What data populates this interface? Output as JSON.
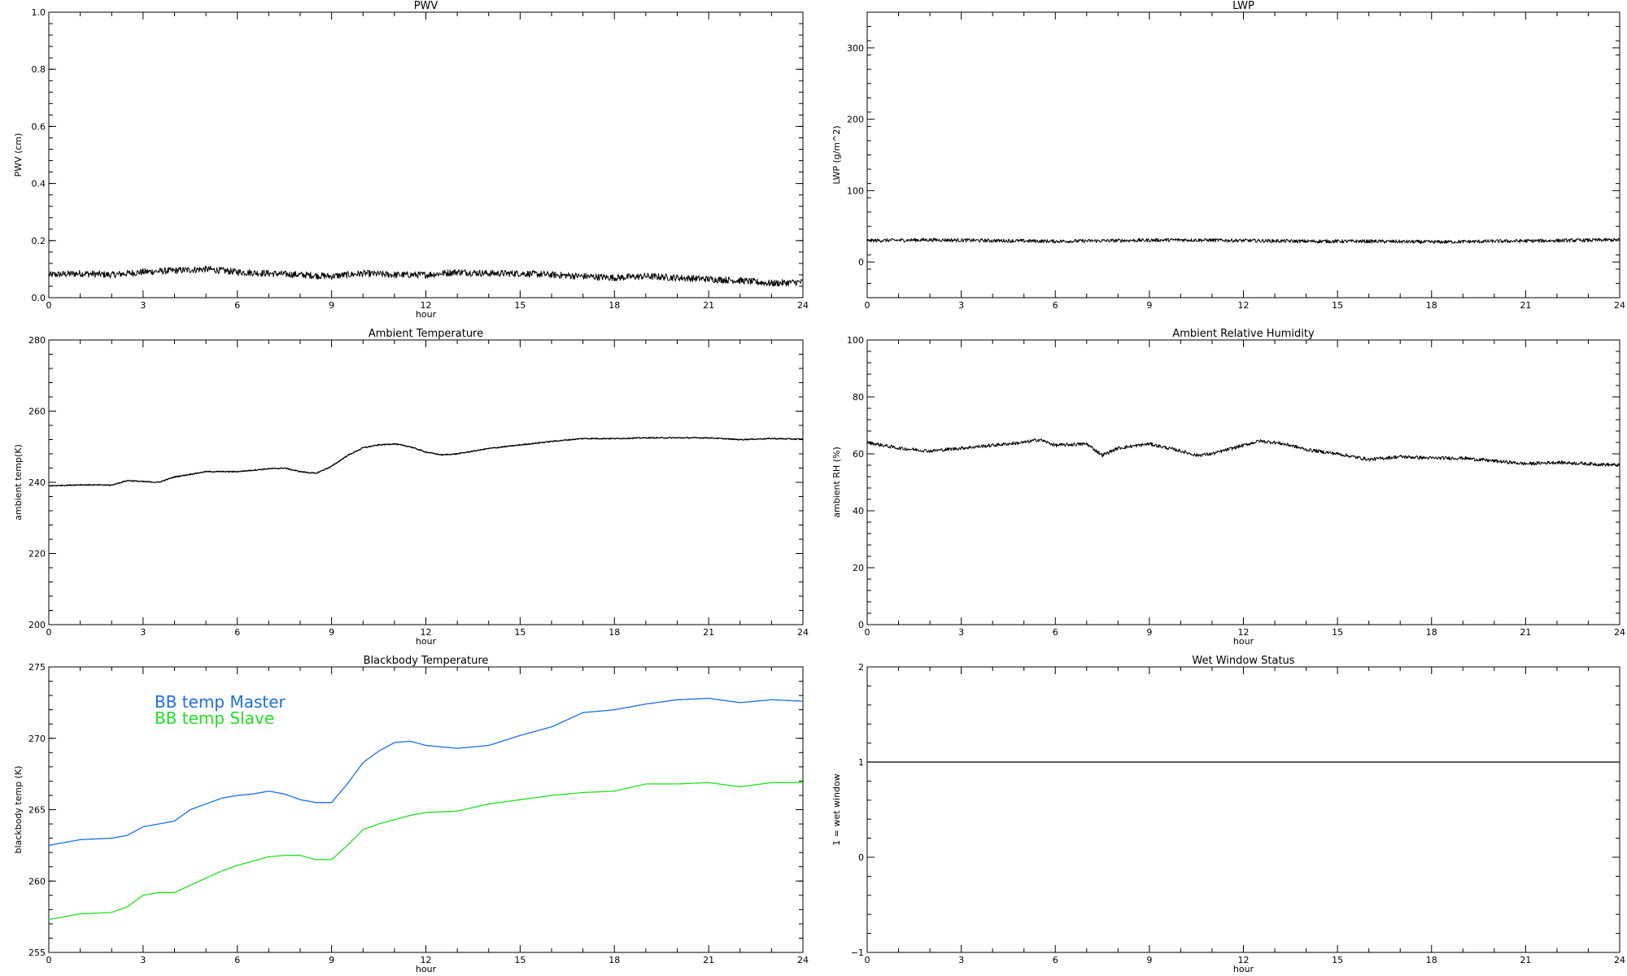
{
  "chart_data": [
    {
      "type": "line",
      "title": "PWV",
      "xlabel": "hour",
      "ylabel": "PWV (cm)",
      "xlim": [
        0,
        24
      ],
      "ylim": [
        0,
        1.0
      ],
      "xticks": [
        "0",
        "3",
        "6",
        "9",
        "12",
        "15",
        "18",
        "21",
        "24"
      ],
      "yticks": [
        "0.0",
        "0.2",
        "0.4",
        "0.6",
        "0.8",
        "1.0"
      ],
      "series": [
        {
          "color": "#000000",
          "noise": 0.012,
          "x": [
            0,
            1,
            2,
            3,
            4,
            5,
            6,
            7,
            8,
            9,
            10,
            11,
            12,
            13,
            14,
            15,
            16,
            17,
            18,
            19,
            20,
            21,
            22,
            23,
            24
          ],
          "y": [
            0.08,
            0.085,
            0.08,
            0.09,
            0.095,
            0.1,
            0.09,
            0.085,
            0.08,
            0.075,
            0.085,
            0.08,
            0.08,
            0.09,
            0.085,
            0.085,
            0.08,
            0.075,
            0.07,
            0.075,
            0.07,
            0.065,
            0.06,
            0.05,
            0.055
          ]
        }
      ]
    },
    {
      "type": "line",
      "title": "LWP",
      "xlabel": "",
      "ylabel": "LWP (g/m^2)",
      "xlim": [
        0,
        24
      ],
      "ylim": [
        -50,
        350
      ],
      "xticks": [
        "0",
        "3",
        "6",
        "9",
        "12",
        "15",
        "18",
        "21",
        "24"
      ],
      "yticks": [
        "0",
        "100",
        "200",
        "300"
      ],
      "series": [
        {
          "color": "#000000",
          "noise": 2.5,
          "x": [
            0,
            2,
            4,
            6,
            8,
            10,
            12,
            14,
            16,
            18,
            20,
            22,
            24
          ],
          "y": [
            30,
            31,
            30,
            29,
            30,
            31,
            30,
            29,
            29,
            28,
            29,
            30,
            31
          ]
        }
      ]
    },
    {
      "type": "line",
      "title": "Ambient Temperature",
      "xlabel": "hour",
      "ylabel": "ambient temp(K)",
      "xlim": [
        0,
        24
      ],
      "ylim": [
        200,
        280
      ],
      "xticks": [
        "0",
        "3",
        "6",
        "9",
        "12",
        "15",
        "18",
        "21",
        "24"
      ],
      "yticks": [
        "200",
        "220",
        "240",
        "260",
        "280"
      ],
      "series": [
        {
          "color": "#000000",
          "noise": 0.15,
          "x": [
            0,
            1,
            2,
            2.5,
            3,
            3.5,
            4,
            5,
            6,
            7,
            7.5,
            8,
            8.5,
            9,
            9.5,
            10,
            10.5,
            11,
            11.5,
            12,
            12.5,
            13,
            14,
            15,
            16,
            17,
            18,
            19,
            20,
            21,
            22,
            23,
            24
          ],
          "y": [
            239,
            239.3,
            239.2,
            240.5,
            240.2,
            240,
            241.5,
            243,
            243,
            243.8,
            244,
            243,
            242.5,
            244.5,
            247.5,
            249.7,
            250.5,
            250.8,
            250,
            248.5,
            247.7,
            248,
            249.5,
            250.5,
            251.5,
            252.3,
            252.3,
            252.5,
            252.5,
            252.5,
            252,
            252.3,
            252.1
          ]
        }
      ]
    },
    {
      "type": "line",
      "title": "Ambient Relative Humidity",
      "xlabel": "hour",
      "ylabel": "ambient RH (%)",
      "xlim": [
        0,
        24
      ],
      "ylim": [
        0,
        100
      ],
      "xticks": [
        "0",
        "3",
        "6",
        "9",
        "12",
        "15",
        "18",
        "21",
        "24"
      ],
      "yticks": [
        "0",
        "20",
        "40",
        "60",
        "80",
        "100"
      ],
      "series": [
        {
          "color": "#000000",
          "noise": 0.6,
          "x": [
            0,
            1,
            2,
            3,
            4,
            5,
            5.5,
            6,
            7,
            7.5,
            8,
            9,
            10,
            10.5,
            11,
            12,
            12.5,
            13,
            13.5,
            14,
            15,
            16,
            17,
            18,
            19,
            20,
            21,
            22,
            23,
            24
          ],
          "y": [
            64,
            62,
            61,
            62,
            63,
            64,
            65,
            63,
            63.5,
            59.5,
            62,
            63.5,
            61,
            59.5,
            60,
            63,
            64.5,
            64,
            63,
            61.5,
            60,
            58,
            59,
            58.5,
            58.5,
            57.5,
            56.5,
            57,
            56.5,
            56
          ]
        }
      ]
    },
    {
      "type": "line",
      "title": "Blackbody Temperature",
      "xlabel": "hour",
      "ylabel": "blackbody temp (K)",
      "xlim": [
        0,
        24
      ],
      "ylim": [
        255,
        275
      ],
      "xticks": [
        "0",
        "3",
        "6",
        "9",
        "12",
        "15",
        "18",
        "21",
        "24"
      ],
      "yticks": [
        "255",
        "260",
        "265",
        "270",
        "275"
      ],
      "legend": [
        "BB temp Master",
        "BB temp Slave"
      ],
      "series": [
        {
          "name": "BB temp Master",
          "color": "#1a6ee8",
          "noise": 0,
          "x": [
            0,
            1,
            2,
            2.5,
            3,
            3.5,
            4,
            4.5,
            5,
            5.5,
            6,
            6.5,
            7,
            7.5,
            8,
            8.5,
            9,
            9.5,
            10,
            10.5,
            11,
            11.5,
            12,
            13,
            14,
            15,
            16,
            17,
            18,
            19,
            20,
            21,
            22,
            23,
            24
          ],
          "y": [
            262.5,
            262.9,
            263,
            263.2,
            263.8,
            264,
            264.2,
            265,
            265.4,
            265.8,
            266,
            266.1,
            266.3,
            266.1,
            265.7,
            265.5,
            265.5,
            266.8,
            268.3,
            269.1,
            269.7,
            269.8,
            269.5,
            269.3,
            269.5,
            270.2,
            270.8,
            271.8,
            272,
            272.4,
            272.7,
            272.8,
            272.5,
            272.7,
            272.6
          ]
        },
        {
          "name": "BB temp Slave",
          "color": "#22e022",
          "noise": 0,
          "x": [
            0,
            1,
            2,
            2.5,
            3,
            3.5,
            4,
            4.5,
            5,
            5.5,
            6,
            6.5,
            7,
            7.5,
            8,
            8.5,
            9,
            9.5,
            10,
            10.5,
            11,
            11.5,
            12,
            13,
            14,
            15,
            16,
            17,
            18,
            19,
            20,
            21,
            22,
            23,
            24
          ],
          "y": [
            257.3,
            257.7,
            257.8,
            258.2,
            259,
            259.2,
            259.2,
            259.7,
            260.2,
            260.7,
            261.1,
            261.4,
            261.7,
            261.8,
            261.8,
            261.5,
            261.5,
            262.5,
            263.6,
            264,
            264.3,
            264.6,
            264.8,
            264.9,
            265.4,
            265.7,
            266,
            266.2,
            266.3,
            266.8,
            266.8,
            266.9,
            266.6,
            266.9,
            266.9
          ]
        }
      ]
    },
    {
      "type": "line",
      "title": "Wet Window Status",
      "xlabel": "hour",
      "ylabel": "1 = wet window",
      "xlim": [
        0,
        24
      ],
      "ylim": [
        -1,
        2
      ],
      "xticks": [
        "0",
        "3",
        "6",
        "9",
        "12",
        "15",
        "18",
        "21",
        "24"
      ],
      "yticks": [
        "−1",
        "0",
        "1",
        "2"
      ],
      "series": [
        {
          "color": "#000000",
          "noise": 0,
          "x": [
            0,
            24
          ],
          "y": [
            1,
            1
          ]
        }
      ]
    }
  ]
}
